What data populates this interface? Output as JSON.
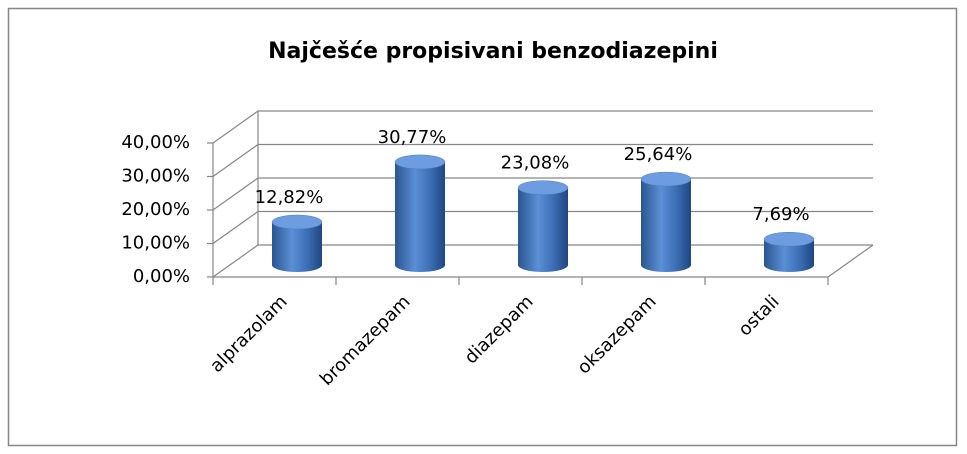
{
  "chart_data": {
    "type": "bar3d",
    "title": "Najčešće propisivani benzodiazepini",
    "categories": [
      "alprazolam",
      "bromazepam",
      "diazepam",
      "oksazepam",
      "ostali"
    ],
    "values": [
      12.82,
      30.77,
      23.08,
      25.64,
      7.69
    ],
    "value_labels": [
      "12,82%",
      "30,77%",
      "23,08%",
      "25,64%",
      "7,69%"
    ],
    "color": "#4a7ebb",
    "ylim": [
      0,
      40
    ],
    "yticks": [
      {
        "value": 0,
        "label": "0,00%"
      },
      {
        "value": 10,
        "label": "10,00%"
      },
      {
        "value": 20,
        "label": "20,00%"
      },
      {
        "value": 30,
        "label": "30,00%"
      },
      {
        "value": 40,
        "label": "40,00%"
      }
    ],
    "grid": true
  }
}
